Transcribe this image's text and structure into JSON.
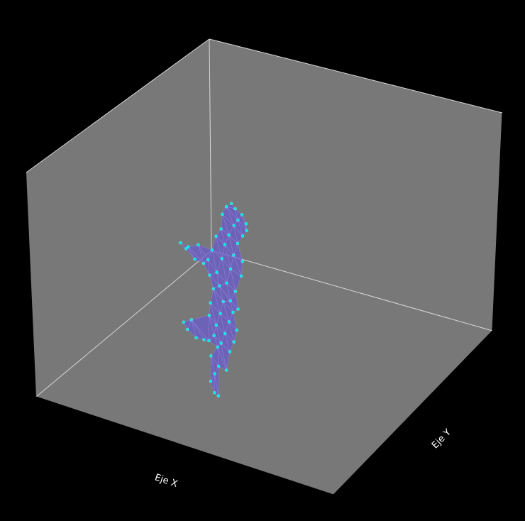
{
  "chart_data": {
    "type": "mesh3d",
    "title": "",
    "xlabel": "Eje X",
    "ylabel": "Eje Y",
    "zlabel": "",
    "grid": false,
    "colors": {
      "background": "#000000",
      "pane": "#787878",
      "pane_edge": "#d8d8d8",
      "mesh_fill": "#6a5acd",
      "mesh_edge": "#8b7fe0",
      "vertex": "#00e5e5"
    },
    "vertices": [
      [
        0.55,
        0.78,
        0.97
      ],
      [
        0.57,
        0.79,
        0.96
      ],
      [
        0.6,
        0.8,
        0.95
      ],
      [
        0.52,
        0.76,
        0.93
      ],
      [
        0.64,
        0.84,
        0.95
      ],
      [
        0.58,
        0.79,
        0.91
      ],
      [
        0.63,
        0.82,
        0.9
      ],
      [
        0.5,
        0.75,
        0.88
      ],
      [
        0.56,
        0.78,
        0.87
      ],
      [
        0.61,
        0.81,
        0.86
      ],
      [
        0.49,
        0.74,
        0.8
      ],
      [
        0.53,
        0.76,
        0.8
      ],
      [
        0.58,
        0.79,
        0.8
      ],
      [
        0.46,
        0.72,
        0.74
      ],
      [
        0.51,
        0.75,
        0.74
      ],
      [
        0.56,
        0.78,
        0.73
      ],
      [
        0.61,
        0.81,
        0.74
      ],
      [
        0.44,
        0.71,
        0.66
      ],
      [
        0.5,
        0.75,
        0.67
      ],
      [
        0.55,
        0.78,
        0.66
      ],
      [
        0.6,
        0.8,
        0.66
      ],
      [
        0.36,
        0.66,
        0.62
      ],
      [
        0.42,
        0.7,
        0.6
      ],
      [
        0.47,
        0.73,
        0.58
      ],
      [
        0.53,
        0.77,
        0.58
      ],
      [
        0.58,
        0.8,
        0.58
      ],
      [
        0.3,
        0.62,
        0.56
      ],
      [
        0.26,
        0.6,
        0.55
      ],
      [
        0.28,
        0.6,
        0.53
      ],
      [
        0.33,
        0.63,
        0.52
      ],
      [
        0.38,
        0.66,
        0.54
      ],
      [
        0.42,
        0.69,
        0.52
      ],
      [
        0.48,
        0.73,
        0.52
      ],
      [
        0.55,
        0.78,
        0.51
      ],
      [
        0.59,
        0.8,
        0.5
      ],
      [
        0.44,
        0.7,
        0.47
      ],
      [
        0.5,
        0.74,
        0.46
      ],
      [
        0.56,
        0.78,
        0.46
      ],
      [
        0.43,
        0.7,
        0.4
      ],
      [
        0.49,
        0.74,
        0.4
      ],
      [
        0.54,
        0.77,
        0.4
      ],
      [
        0.58,
        0.79,
        0.39
      ],
      [
        0.42,
        0.69,
        0.33
      ],
      [
        0.47,
        0.73,
        0.33
      ],
      [
        0.52,
        0.76,
        0.33
      ],
      [
        0.57,
        0.79,
        0.33
      ],
      [
        0.45,
        0.71,
        0.26
      ],
      [
        0.5,
        0.75,
        0.27
      ],
      [
        0.55,
        0.78,
        0.27
      ],
      [
        0.32,
        0.63,
        0.23
      ],
      [
        0.28,
        0.61,
        0.19
      ],
      [
        0.3,
        0.62,
        0.17
      ],
      [
        0.35,
        0.65,
        0.17
      ],
      [
        0.39,
        0.67,
        0.19
      ],
      [
        0.42,
        0.69,
        0.21
      ],
      [
        0.47,
        0.72,
        0.22
      ],
      [
        0.44,
        0.71,
        0.16
      ],
      [
        0.48,
        0.73,
        0.14
      ],
      [
        0.52,
        0.75,
        0.15
      ],
      [
        0.46,
        0.72,
        0.09
      ],
      [
        0.44,
        0.71,
        0.04
      ],
      [
        0.46,
        0.72,
        0.0
      ],
      [
        0.48,
        0.73,
        0.0
      ]
    ],
    "faces": [
      [
        0,
        1,
        3
      ],
      [
        1,
        2,
        5
      ],
      [
        2,
        4,
        6
      ],
      [
        1,
        5,
        3
      ],
      [
        2,
        6,
        5
      ],
      [
        3,
        5,
        8
      ],
      [
        3,
        7,
        8
      ],
      [
        5,
        6,
        9
      ],
      [
        5,
        8,
        9
      ],
      [
        7,
        8,
        11
      ],
      [
        7,
        10,
        11
      ],
      [
        8,
        9,
        12
      ],
      [
        8,
        11,
        12
      ],
      [
        10,
        11,
        14
      ],
      [
        10,
        13,
        14
      ],
      [
        11,
        12,
        15
      ],
      [
        11,
        14,
        15
      ],
      [
        12,
        15,
        16
      ],
      [
        13,
        14,
        18
      ],
      [
        13,
        17,
        18
      ],
      [
        14,
        15,
        19
      ],
      [
        14,
        18,
        19
      ],
      [
        15,
        16,
        20
      ],
      [
        15,
        19,
        20
      ],
      [
        17,
        18,
        23
      ],
      [
        17,
        22,
        23
      ],
      [
        18,
        19,
        24
      ],
      [
        18,
        23,
        24
      ],
      [
        19,
        20,
        25
      ],
      [
        19,
        24,
        25
      ],
      [
        17,
        21,
        22
      ],
      [
        21,
        22,
        30
      ],
      [
        21,
        26,
        30
      ],
      [
        26,
        27,
        28
      ],
      [
        26,
        28,
        29
      ],
      [
        26,
        29,
        30
      ],
      [
        22,
        30,
        31
      ],
      [
        22,
        23,
        31
      ],
      [
        23,
        24,
        32
      ],
      [
        23,
        31,
        32
      ],
      [
        24,
        25,
        33
      ],
      [
        24,
        32,
        33
      ],
      [
        25,
        33,
        34
      ],
      [
        31,
        32,
        35
      ],
      [
        32,
        35,
        36
      ],
      [
        32,
        33,
        36
      ],
      [
        33,
        36,
        37
      ],
      [
        33,
        34,
        37
      ],
      [
        35,
        36,
        39
      ],
      [
        35,
        38,
        39
      ],
      [
        36,
        37,
        40
      ],
      [
        36,
        39,
        40
      ],
      [
        37,
        40,
        41
      ],
      [
        38,
        39,
        43
      ],
      [
        38,
        42,
        43
      ],
      [
        39,
        40,
        44
      ],
      [
        39,
        43,
        44
      ],
      [
        40,
        41,
        45
      ],
      [
        40,
        44,
        45
      ],
      [
        42,
        43,
        46
      ],
      [
        43,
        46,
        47
      ],
      [
        43,
        44,
        47
      ],
      [
        44,
        47,
        48
      ],
      [
        44,
        45,
        48
      ],
      [
        42,
        46,
        54
      ],
      [
        42,
        49,
        54
      ],
      [
        49,
        50,
        51
      ],
      [
        49,
        51,
        52
      ],
      [
        49,
        52,
        53
      ],
      [
        49,
        53,
        54
      ],
      [
        46,
        47,
        55
      ],
      [
        46,
        54,
        55
      ],
      [
        47,
        48,
        58
      ],
      [
        47,
        55,
        58
      ],
      [
        55,
        56,
        57
      ],
      [
        55,
        57,
        58
      ],
      [
        56,
        57,
        59
      ],
      [
        56,
        59,
        60
      ],
      [
        57,
        59,
        62
      ],
      [
        59,
        60,
        61
      ],
      [
        59,
        61,
        62
      ]
    ]
  }
}
